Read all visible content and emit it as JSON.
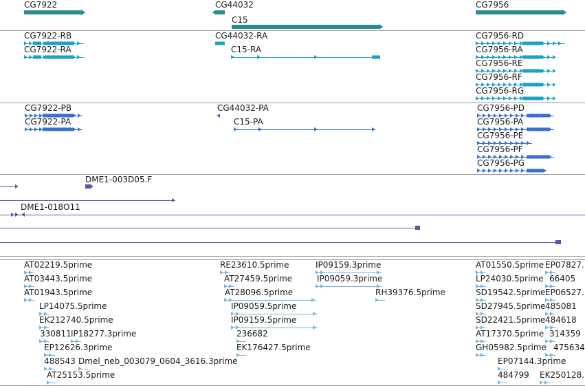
{
  "colors": {
    "gene": "#2e8b8b",
    "transcript": "#1fa0c8",
    "protein": "#3a6fcf",
    "clone": "#6a4cae",
    "est": "#7ab3d8",
    "separator": "#9a9a9a"
  },
  "tracks": {
    "genes": [
      {
        "label": "CG7922"
      },
      {
        "label": "CG44032"
      },
      {
        "label": "C15"
      },
      {
        "label": "CG7956"
      }
    ],
    "transcripts": [
      {
        "label": "CG7922-RB"
      },
      {
        "label": "CG7922-RA"
      },
      {
        "label": "CG44032-RA"
      },
      {
        "label": "C15-RA"
      },
      {
        "label": "CG7956-RD"
      },
      {
        "label": "CG7956-RA"
      },
      {
        "label": "CG7956-RE"
      },
      {
        "label": "CG7956-RF"
      },
      {
        "label": "CG7956-RG"
      }
    ],
    "proteins": [
      {
        "label": "CG7922-PB"
      },
      {
        "label": "CG7922-PA"
      },
      {
        "label": "CG44032-PA"
      },
      {
        "label": "C15-PA"
      },
      {
        "label": "CG7956-PD"
      },
      {
        "label": "CG7956-PA"
      },
      {
        "label": "CG7956-PE"
      },
      {
        "label": "CG7956-PF"
      },
      {
        "label": "CG7956-PG"
      }
    ],
    "clones": [
      {
        "label": "DME1-003D05.F"
      },
      {
        "label": "DME1-018O11"
      }
    ],
    "ests": [
      {
        "label": "AT02219.5prime"
      },
      {
        "label": "AT03443.5prime"
      },
      {
        "label": "AT01943.5prime"
      },
      {
        "label": "LP14075.5prime"
      },
      {
        "label": "EK212740.5prime"
      },
      {
        "label": "330811"
      },
      {
        "label": "IP18277.3prime"
      },
      {
        "label": "EP12626.3prime"
      },
      {
        "label": "488543"
      },
      {
        "label": "Dmel_neb_003079_0604_3616.3prime"
      },
      {
        "label": "AT25153.5prime"
      },
      {
        "label": "RE23610.5prime"
      },
      {
        "label": "AT27459.5prime"
      },
      {
        "label": "AT28096.5prime"
      },
      {
        "label": "IP09059.5prime"
      },
      {
        "label": "IP09159.5prime"
      },
      {
        "label": "236682"
      },
      {
        "label": "EK176427.5prime"
      },
      {
        "label": "IP09159.3prime"
      },
      {
        "label": "IP09059.3prime"
      },
      {
        "label": "RH39376.5prime"
      },
      {
        "label": "AT01550.5prime"
      },
      {
        "label": "EP07827."
      },
      {
        "label": "LP24030.5prime"
      },
      {
        "label": "66405"
      },
      {
        "label": "SD19542.5prime"
      },
      {
        "label": "EP06527."
      },
      {
        "label": "SD27945.5prime"
      },
      {
        "label": "485081"
      },
      {
        "label": "SD22421.5prime"
      },
      {
        "label": "484618"
      },
      {
        "label": "AT17370.5prime"
      },
      {
        "label": "314359"
      },
      {
        "label": "GH05982.5prime"
      },
      {
        "label": "475634"
      },
      {
        "label": "EP07144.3prime"
      },
      {
        "label": "484799"
      },
      {
        "label": "EK250128."
      }
    ]
  }
}
